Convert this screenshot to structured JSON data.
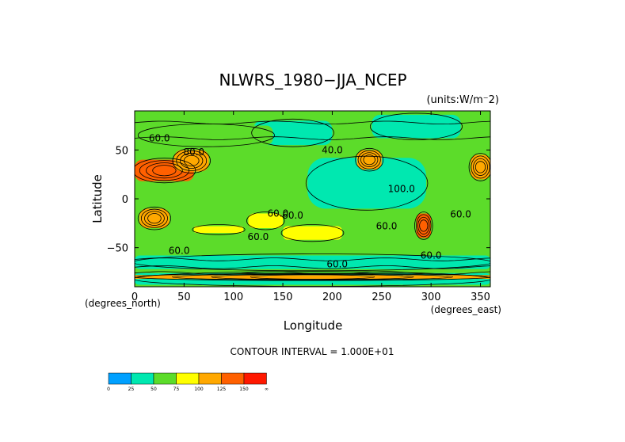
{
  "chart_data": {
    "type": "heatmap",
    "title": "NLWRS_1980−JJA_NCEP",
    "units": "(units:W/m⁻2)",
    "xlabel": "Longitude",
    "ylabel": "Latitude",
    "x_unit_note": "(degrees_east)",
    "y_unit_note": "(degrees_north)",
    "xlim": [
      0,
      360
    ],
    "ylim": [
      -90,
      90
    ],
    "x_ticks": [
      "0",
      "50",
      "100",
      "150",
      "200",
      "250",
      "300",
      "350"
    ],
    "y_ticks": [
      "50",
      "0",
      "−50"
    ],
    "contour_interval": "CONTOUR INTERVAL = 1.000E+01",
    "contour_labels": [
      "60.0",
      "40.0",
      "80.0",
      "60.0",
      "100.0",
      "60.0",
      "60.0",
      "60.0",
      "60.0",
      "60.0",
      "60.0",
      "60.0"
    ],
    "colorbar": {
      "labels": [
        "0",
        "25",
        "50",
        "75",
        "100",
        "125",
        "150",
        "∞"
      ],
      "colors": [
        "#00a0ff",
        "#00e8b0",
        "#5cdc2a",
        "#ffff00",
        "#ffa800",
        "#ff6000",
        "#ff1800"
      ]
    },
    "value_bins": [
      [
        0,
        25
      ],
      [
        25,
        50
      ],
      [
        50,
        75
      ],
      [
        75,
        100
      ],
      [
        100,
        125
      ],
      [
        125,
        150
      ],
      [
        150,
        999
      ]
    ],
    "background_value": 60,
    "field_features": [
      {
        "lon": [
          175,
          295
        ],
        "lat": [
          -10,
          42
        ],
        "value": 40
      },
      {
        "lon": [
          240,
          330
        ],
        "lat": [
          62,
          86
        ],
        "value": 45
      },
      {
        "lon": [
          120,
          200
        ],
        "lat": [
          55,
          80
        ],
        "value": 45
      },
      {
        "lon": [
          5,
          140
        ],
        "lat": [
          55,
          75
        ],
        "value": 55
      },
      {
        "lon": [
          0,
          360
        ],
        "lat": [
          -72,
          -58
        ],
        "value": 45
      },
      {
        "lon": [
          0,
          360
        ],
        "lat": [
          -88,
          -76
        ],
        "value": 40
      },
      {
        "lon": [
          0,
          60
        ],
        "lat": [
          18,
          40
        ],
        "value": 140
      },
      {
        "lon": [
          40,
          75
        ],
        "lat": [
          28,
          50
        ],
        "value": 110
      },
      {
        "lon": [
          225,
          250
        ],
        "lat": [
          30,
          50
        ],
        "value": 110
      },
      {
        "lon": [
          340,
          360
        ],
        "lat": [
          20,
          45
        ],
        "value": 115
      },
      {
        "lon": [
          5,
          35
        ],
        "lat": [
          -30,
          -10
        ],
        "value": 100
      },
      {
        "lon": [
          115,
          150
        ],
        "lat": [
          -30,
          -15
        ],
        "value": 95
      },
      {
        "lon": [
          150,
          210
        ],
        "lat": [
          -42,
          -28
        ],
        "value": 80
      },
      {
        "lon": [
          285,
          300
        ],
        "lat": [
          -40,
          -15
        ],
        "value": 130
      },
      {
        "lon": [
          60,
          110
        ],
        "lat": [
          -35,
          -28
        ],
        "value": 75
      },
      {
        "lon": [
          0,
          360
        ],
        "lat": [
          -82,
          -78
        ],
        "value": 100
      }
    ]
  }
}
